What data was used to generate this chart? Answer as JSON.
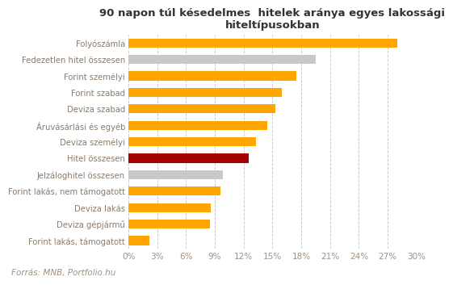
{
  "title": "90 napon túl késedelmes  hitelek aránya egyes lakossági\nhiteltípusokban",
  "categories": [
    "Folyószámla",
    "Fedezetlen hitel összesen",
    "Forint személyi",
    "Forint szabad",
    "Deviza szabad",
    "Áruvásárlási és egyéb",
    "Deviza személyi",
    "Hitel összesen",
    "Jelzáloghitel összesen",
    "Forint lakás, nem támogatott",
    "Deviza lakás",
    "Deviza gépjármű",
    "Forint lakás, támogatott"
  ],
  "values": [
    0.28,
    0.195,
    0.175,
    0.16,
    0.153,
    0.145,
    0.133,
    0.125,
    0.098,
    0.096,
    0.086,
    0.085,
    0.022
  ],
  "colors": [
    "#FFA500",
    "#C8C8C8",
    "#FFA500",
    "#FFA500",
    "#FFA500",
    "#FFA500",
    "#FFA500",
    "#A30000",
    "#C8C8C8",
    "#FFA500",
    "#FFA500",
    "#FFA500",
    "#FFA500"
  ],
  "xlim": [
    0,
    0.3
  ],
  "xticks": [
    0,
    0.03,
    0.06,
    0.09,
    0.12,
    0.15,
    0.18,
    0.21,
    0.24,
    0.27,
    0.3
  ],
  "xtick_labels": [
    "0%",
    "3%",
    "6%",
    "9%",
    "12%",
    "15%",
    "18%",
    "21%",
    "24%",
    "27%",
    "30%"
  ],
  "footnote": "Forrás: MNB, Portfolio.hu",
  "background_color": "#FFFFFF",
  "bar_height": 0.55,
  "title_fontsize": 9.5,
  "label_fontsize": 7.2,
  "tick_fontsize": 7.5,
  "footnote_fontsize": 7.5,
  "label_color": "#8B7B6B",
  "tick_color": "#A09080",
  "title_color": "#333333",
  "grid_color": "#CCCCCC"
}
